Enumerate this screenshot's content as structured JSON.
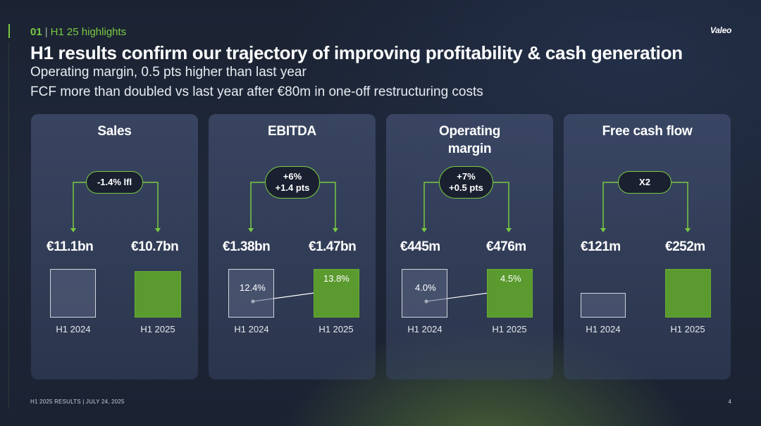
{
  "header": {
    "section_number": "01",
    "section_separator": "|",
    "section_label": "H1 25 highlights",
    "logo_text": "Valeo",
    "title": "H1 results confirm our trajectory of improving profitability & cash generation",
    "subtitle_1": "Operating margin, 0.5 pts higher than last year",
    "subtitle_2": "FCF more than doubled vs last year after €80m in one-off restructuring costs"
  },
  "cards": [
    {
      "title": "Sales",
      "pill_line1": "-1.4% lfl",
      "value_prev": "€11.1bn",
      "value_curr": "€10.7bn",
      "label_prev": "H1 2024",
      "label_curr": "H1 2025"
    },
    {
      "title": "EBITDA",
      "pill_line1": "+6%",
      "pill_line2": "+1.4 pts",
      "value_prev": "€1.38bn",
      "value_curr": "€1.47bn",
      "pct_prev": "12.4%",
      "pct_curr": "13.8%",
      "label_prev": "H1 2024",
      "label_curr": "H1 2025"
    },
    {
      "title_line1": "Operating",
      "title_line2": "margin",
      "pill_line1": "+7%",
      "pill_line2": "+0.5 pts",
      "value_prev": "€445m",
      "value_curr": "€476m",
      "pct_prev": "4.0%",
      "pct_curr": "4.5%",
      "label_prev": "H1 2024",
      "label_curr": "H1 2025"
    },
    {
      "title": "Free cash flow",
      "pill_line1": "X2",
      "value_prev": "€121m",
      "value_curr": "€252m",
      "label_prev": "H1 2024",
      "label_curr": "H1 2025"
    }
  ],
  "footer": {
    "text": "H1 2025 RESULTS | JULY 24, 2025",
    "page_number": "4"
  },
  "colors": {
    "accent_green": "#7ac943",
    "bar_green": "#5a9a2f",
    "background": "#1e2738"
  }
}
